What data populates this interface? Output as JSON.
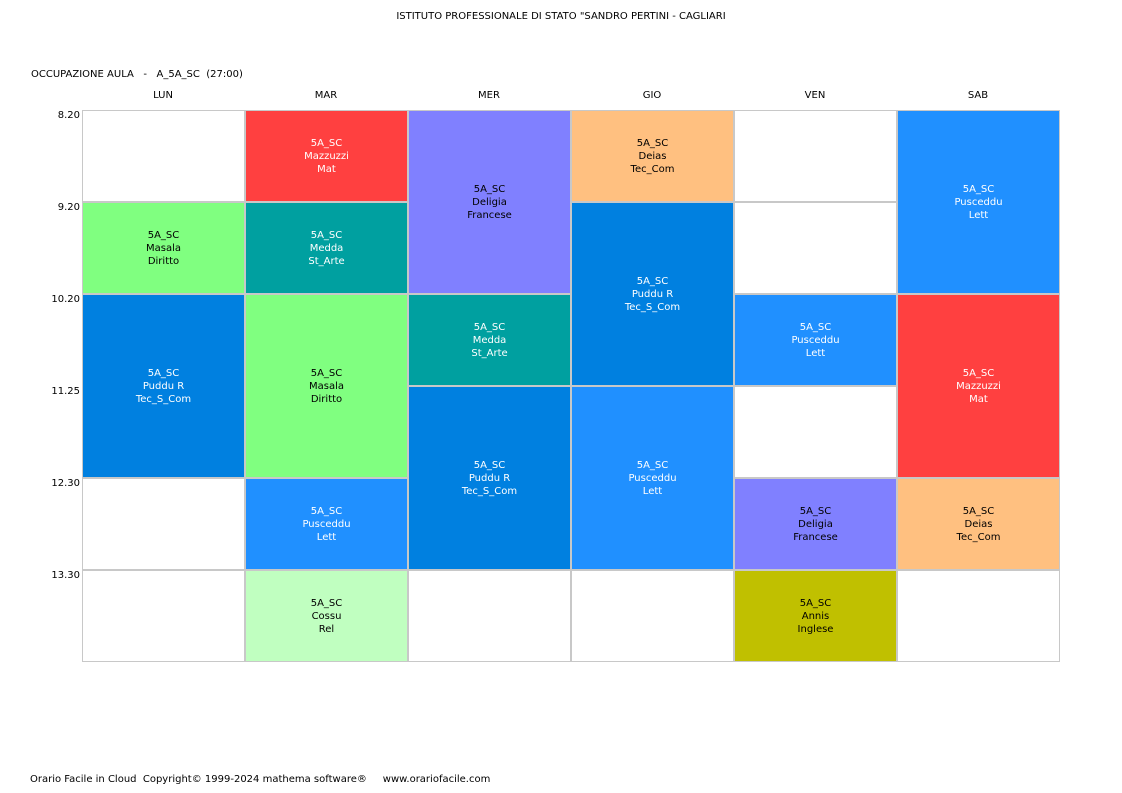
{
  "header": {
    "title": "ISTITUTO PROFESSIONALE DI STATO \"SANDRO PERTINI - CAGLIARI",
    "subtitle": "OCCUPAZIONE AULA   -   A_5A_SC  (27:00)"
  },
  "days": [
    "LUN",
    "MAR",
    "MER",
    "GIO",
    "VEN",
    "SAB"
  ],
  "times": [
    "8.20",
    "9.20",
    "10.20",
    "11.25",
    "12.30",
    "13.30"
  ],
  "colors": {
    "red": "#ff4040",
    "green": "#80ff80",
    "teal": "#00a0a0",
    "lavender": "#8080ff",
    "orange": "#ffc080",
    "blue": "#0080e0",
    "sky": "#2090ff",
    "mint": "#c0ffc0",
    "olive": "#c0c000"
  },
  "lessons": [
    {
      "day": 0,
      "start": 1,
      "span": 1,
      "class_name": "5A_SC",
      "teacher": "Masala",
      "subject": "Diritto",
      "color": "green"
    },
    {
      "day": 0,
      "start": 2,
      "span": 2,
      "class_name": "5A_SC",
      "teacher": "Puddu R",
      "subject": "Tec_S_Com",
      "color": "blue"
    },
    {
      "day": 1,
      "start": 0,
      "span": 1,
      "class_name": "5A_SC",
      "teacher": "Mazzuzzi",
      "subject": "Mat",
      "color": "red"
    },
    {
      "day": 1,
      "start": 1,
      "span": 1,
      "class_name": "5A_SC",
      "teacher": "Medda",
      "subject": "St_Arte",
      "color": "teal"
    },
    {
      "day": 1,
      "start": 2,
      "span": 2,
      "class_name": "5A_SC",
      "teacher": "Masala",
      "subject": "Diritto",
      "color": "green"
    },
    {
      "day": 1,
      "start": 4,
      "span": 1,
      "class_name": "5A_SC",
      "teacher": "Pusceddu",
      "subject": "Lett",
      "color": "sky"
    },
    {
      "day": 1,
      "start": 5,
      "span": 1,
      "class_name": "5A_SC",
      "teacher": "Cossu",
      "subject": "Rel",
      "color": "mint"
    },
    {
      "day": 2,
      "start": 0,
      "span": 2,
      "class_name": "5A_SC",
      "teacher": "Deligia",
      "subject": "Francese",
      "color": "lavender"
    },
    {
      "day": 2,
      "start": 2,
      "span": 1,
      "class_name": "5A_SC",
      "teacher": "Medda",
      "subject": "St_Arte",
      "color": "teal"
    },
    {
      "day": 2,
      "start": 3,
      "span": 2,
      "class_name": "5A_SC",
      "teacher": "Puddu R",
      "subject": "Tec_S_Com",
      "color": "blue"
    },
    {
      "day": 3,
      "start": 0,
      "span": 1,
      "class_name": "5A_SC",
      "teacher": "Deias",
      "subject": "Tec_Com",
      "color": "orange"
    },
    {
      "day": 3,
      "start": 1,
      "span": 2,
      "class_name": "5A_SC",
      "teacher": "Puddu R",
      "subject": "Tec_S_Com",
      "color": "blue"
    },
    {
      "day": 3,
      "start": 3,
      "span": 2,
      "class_name": "5A_SC",
      "teacher": "Pusceddu",
      "subject": "Lett",
      "color": "sky"
    },
    {
      "day": 4,
      "start": 2,
      "span": 1,
      "class_name": "5A_SC",
      "teacher": "Pusceddu",
      "subject": "Lett",
      "color": "sky"
    },
    {
      "day": 4,
      "start": 4,
      "span": 1,
      "class_name": "5A_SC",
      "teacher": "Deligia",
      "subject": "Francese",
      "color": "lavender"
    },
    {
      "day": 4,
      "start": 5,
      "span": 1,
      "class_name": "5A_SC",
      "teacher": "Annis",
      "subject": "Inglese",
      "color": "olive"
    },
    {
      "day": 5,
      "start": 0,
      "span": 2,
      "class_name": "5A_SC",
      "teacher": "Pusceddu",
      "subject": "Lett",
      "color": "sky"
    },
    {
      "day": 5,
      "start": 2,
      "span": 2,
      "class_name": "5A_SC",
      "teacher": "Mazzuzzi",
      "subject": "Mat",
      "color": "red"
    },
    {
      "day": 5,
      "start": 4,
      "span": 1,
      "class_name": "5A_SC",
      "teacher": "Deias",
      "subject": "Tec_Com",
      "color": "orange"
    }
  ],
  "footer": {
    "copyright": "Orario Facile in Cloud  Copyright© 1999-2024 mathema software®",
    "website": "www.orariofacile.com"
  }
}
